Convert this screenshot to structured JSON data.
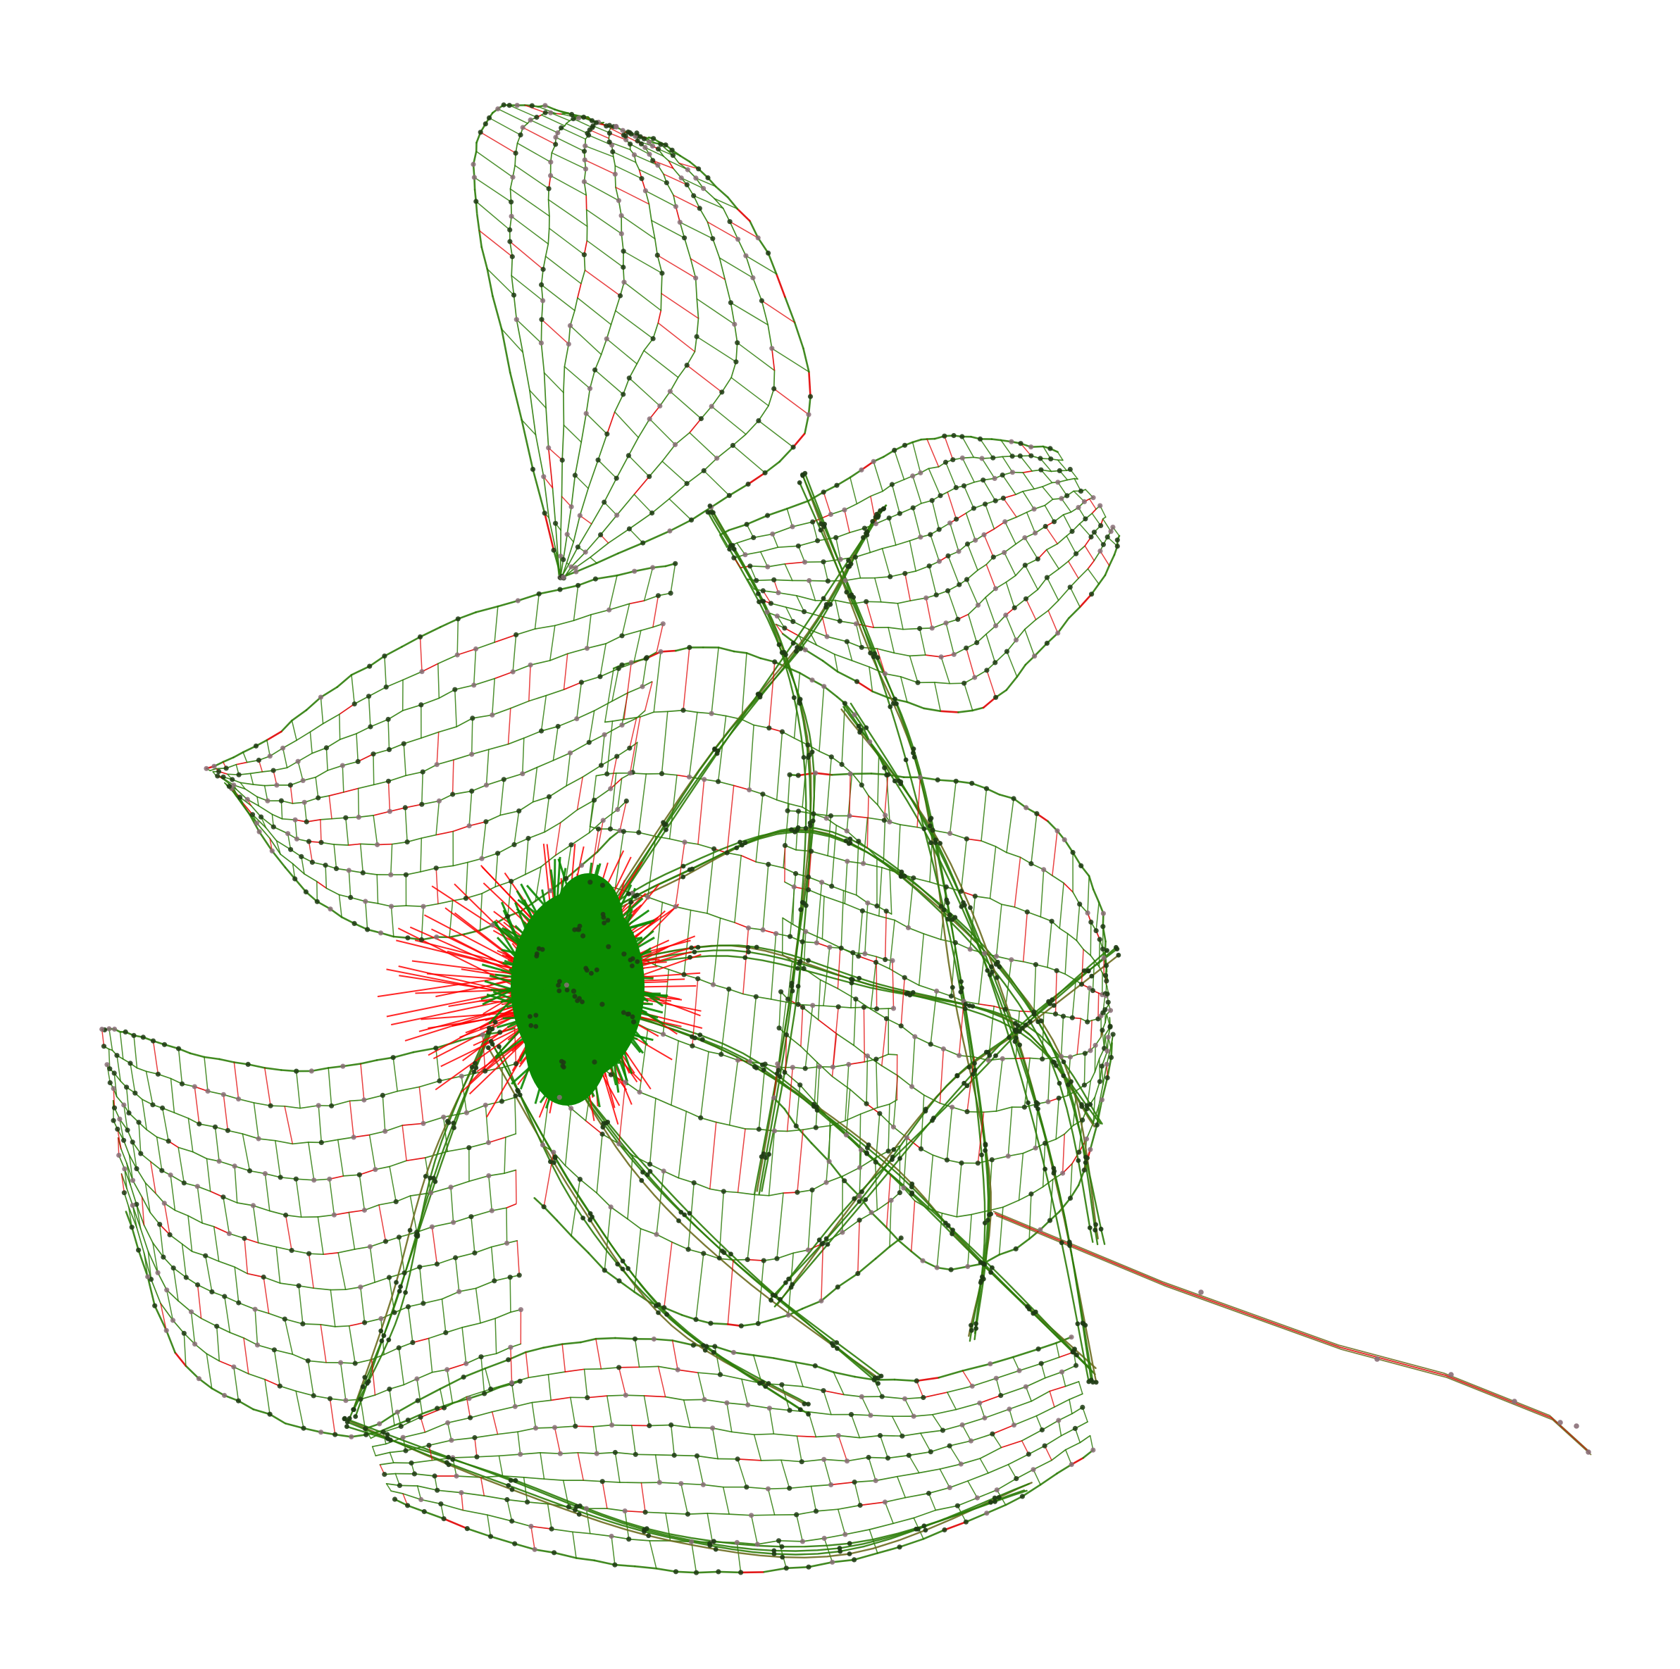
{
  "figure": {
    "kind": "network-graph",
    "background_color": "#ffffff"
  },
  "colors": {
    "edge_primary": "#2e7d0a",
    "edge_secondary": "#6b6b1f",
    "edge_highlight": "#e00000",
    "core_fill": "#0a8a00",
    "core_halo": "#ff0000",
    "node_dark": "#1e3a14",
    "node_light": "#8a6f78"
  },
  "legend": [],
  "labels": []
}
